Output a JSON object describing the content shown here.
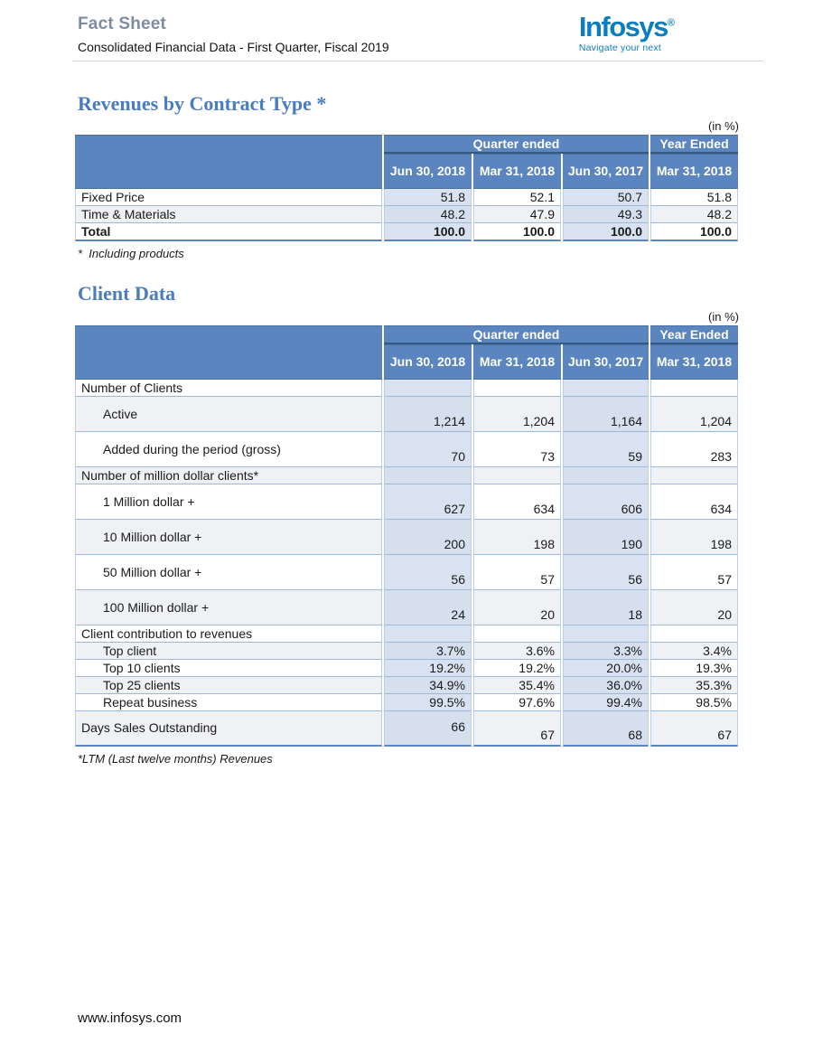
{
  "page": {
    "title": "Fact Sheet",
    "subtitle": "Consolidated Financial Data - First Quarter, Fiscal 2019"
  },
  "logo": {
    "brand": "Infosys",
    "registered_mark": "®",
    "tagline": "Navigate your next",
    "brand_color": "#0b7dc0"
  },
  "colors": {
    "table_header_blue": "#5b85be",
    "shaded_column": "#d9e2f0",
    "banded_row": "#eff1f5",
    "section_heading_blue": "#4a7cc0",
    "title_gray_blue": "#7d8ca3"
  },
  "sections": [
    {
      "heading": "Revenues by Contract Type *",
      "unit_label": "(in %)",
      "footnote": "*  Including products",
      "table": {
        "group_headers": [
          {
            "label": "Quarter ended",
            "span": 3
          },
          {
            "label": "Year Ended",
            "span": 1
          }
        ],
        "column_headers": [
          "Jun 30, 2018",
          "Mar 31, 2018",
          "Jun 30, 2017",
          "Mar 31, 2018"
        ],
        "rows": [
          {
            "label": "Fixed Price",
            "values": [
              "51.8",
              "52.1",
              "50.7",
              "51.8"
            ]
          },
          {
            "label": "Time & Materials",
            "values": [
              "48.2",
              "47.9",
              "49.3",
              "48.2"
            ]
          },
          {
            "label": "Total",
            "values": [
              "100.0",
              "100.0",
              "100.0",
              "100.0"
            ],
            "bold": true
          }
        ]
      }
    },
    {
      "heading": "Client Data",
      "unit_label": "(in %)",
      "footnote": "*LTM (Last twelve months) Revenues",
      "table": {
        "group_headers": [
          {
            "label": "Quarter ended",
            "span": 3
          },
          {
            "label": "Year Ended",
            "span": 1
          }
        ],
        "column_headers": [
          "Jun 30, 2018",
          "Mar 31, 2018",
          "Jun 30, 2017",
          "Mar 31, 2018"
        ],
        "rows": [
          {
            "label": "Number of Clients",
            "values": [
              "",
              "",
              "",
              ""
            ],
            "category": true
          },
          {
            "label": "Active",
            "values": [
              "1,214",
              "1,204",
              "1,164",
              "1,204"
            ],
            "indent": true,
            "tall": true
          },
          {
            "label": "Added during the period (gross)",
            "values": [
              "70",
              "73",
              "59",
              "283"
            ],
            "indent": true,
            "tall": true
          },
          {
            "label": "Number of million dollar clients*",
            "values": [
              "",
              "",
              "",
              ""
            ],
            "category": true
          },
          {
            "label": "1 Million dollar +",
            "values": [
              "627",
              "634",
              "606",
              "634"
            ],
            "indent": true,
            "tall": true
          },
          {
            "label": "10 Million dollar +",
            "values": [
              "200",
              "198",
              "190",
              "198"
            ],
            "indent": true,
            "tall": true
          },
          {
            "label": "50 Million dollar +",
            "values": [
              "56",
              "57",
              "56",
              "57"
            ],
            "indent": true,
            "tall": true
          },
          {
            "label": "100 Million dollar +",
            "values": [
              "24",
              "20",
              "18",
              "20"
            ],
            "indent": true,
            "tall": true
          },
          {
            "label": "Client contribution to revenues",
            "values": [
              "",
              "",
              "",
              ""
            ],
            "category": true
          },
          {
            "label": "Top client",
            "values": [
              "3.7%",
              "3.6%",
              "3.3%",
              "3.4%"
            ],
            "indent": true
          },
          {
            "label": "Top 10 clients",
            "values": [
              "19.2%",
              "19.2%",
              "20.0%",
              "19.3%"
            ],
            "indent": true
          },
          {
            "label": "Top 25 clients",
            "values": [
              "34.9%",
              "35.4%",
              "36.0%",
              "35.3%"
            ],
            "indent": true
          },
          {
            "label": "Repeat business",
            "values": [
              "99.5%",
              "97.6%",
              "99.4%",
              "98.5%"
            ],
            "indent": true
          },
          {
            "label": "Days Sales Outstanding",
            "values": [
              "66",
              "67",
              "68",
              "67"
            ],
            "tall": true,
            "valigns": [
              "middle",
              "bottom",
              "bottom",
              "bottom"
            ]
          }
        ]
      }
    }
  ],
  "footer": {
    "url": "www.infosys.com"
  }
}
